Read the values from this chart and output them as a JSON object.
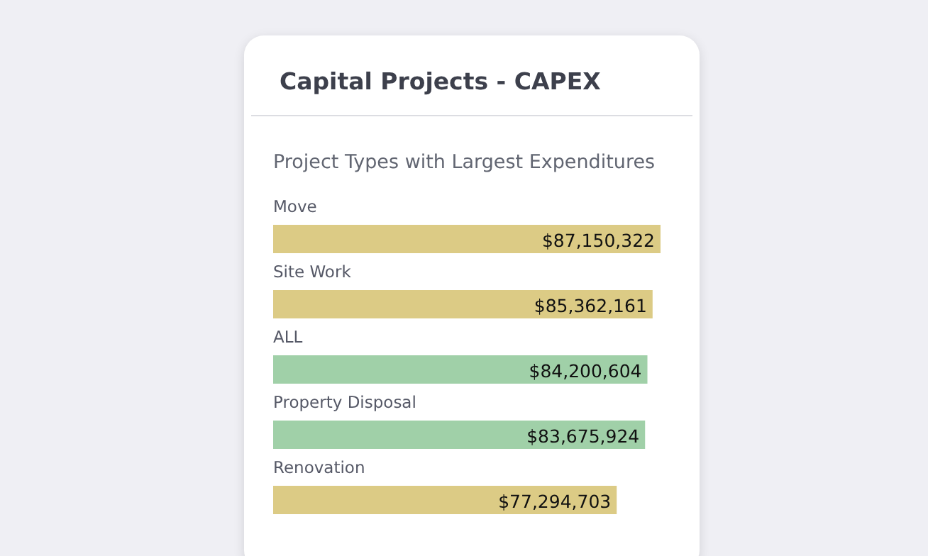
{
  "chart_data": {
    "type": "bar",
    "orientation": "horizontal",
    "title": "Capital Projects - CAPEX",
    "subtitle": "Project Types with Largest Expenditures",
    "categories": [
      "Move",
      "Site Work",
      "ALL",
      "Property Disposal",
      "Renovation"
    ],
    "values": [
      87150322,
      85362161,
      84200604,
      83675924,
      77294703
    ],
    "colors": [
      "#dccb85",
      "#dccb85",
      "#a0d0a8",
      "#a0d0a8",
      "#dccb85"
    ],
    "value_labels": [
      "$87,150,322",
      "$85,362,161",
      "$84,200,604",
      "$83,675,924",
      "$77,294,703"
    ]
  }
}
